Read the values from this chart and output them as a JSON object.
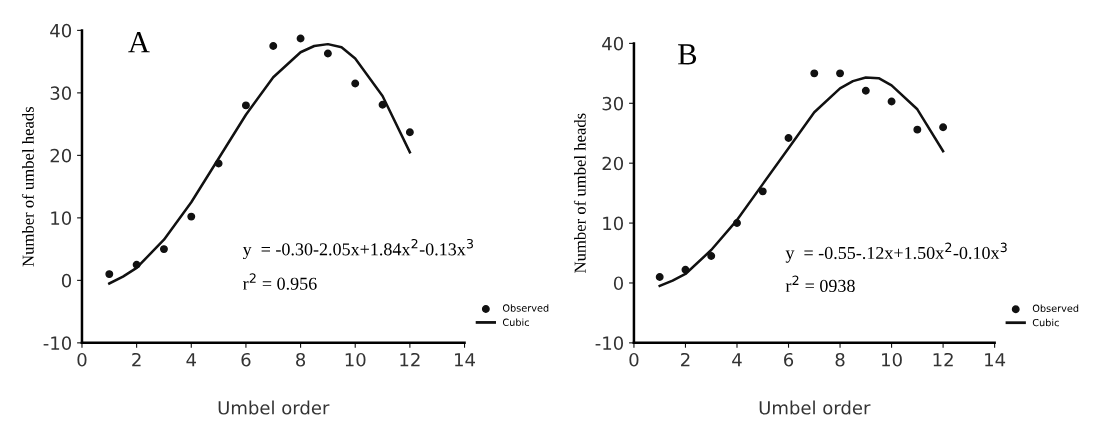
{
  "chart_data": [
    {
      "type": "scatter",
      "xlabel": "Umbel order",
      "ylabel": "Number of umbel heads",
      "xlim": [
        0,
        14
      ],
      "xticks": [
        0,
        2,
        4,
        6,
        8,
        10,
        12,
        14
      ],
      "ylim": [
        -10,
        40
      ],
      "yticks": [
        -10,
        0,
        10,
        20,
        30,
        40
      ],
      "grid": false,
      "legend": "bottom right",
      "annotations": [
        "A",
        "y  = -0.30-2.05x+1.84x$^{2}$-0.13x$^{3}$",
        "r$^{2}$ = 0.956"
      ],
      "series": [
        {
          "name": "Observed",
          "marker": "circle",
          "color": "#111111",
          "x": [
            1,
            2,
            3,
            4,
            5,
            6,
            7,
            8,
            9,
            10,
            11,
            12
          ],
          "values": [
            1,
            2.5,
            5,
            10.2,
            18.7,
            28,
            37.5,
            38.7,
            36.3,
            31.5,
            28.1,
            23.7
          ]
        },
        {
          "name": "Cubic",
          "type": "line",
          "line_style": "solid",
          "color": "#111111",
          "x": [
            1,
            1.5,
            2,
            3,
            4,
            5,
            6,
            7,
            8,
            8.5,
            9,
            9.5,
            10,
            11,
            12
          ],
          "values": [
            -0.5,
            0.6,
            2,
            6.5,
            12.5,
            19.5,
            26.5,
            32.5,
            36.5,
            37.5,
            37.8,
            37.3,
            35.5,
            29.5,
            20.5
          ]
        }
      ]
    },
    {
      "type": "scatter",
      "xlabel": "Umbel order",
      "ylabel": "Number of umbel heads",
      "xlim": [
        0,
        14
      ],
      "xticks": [
        0,
        2,
        4,
        6,
        8,
        10,
        12,
        14
      ],
      "ylim": [
        -10,
        40
      ],
      "yticks": [
        -10,
        0,
        10,
        20,
        30,
        40
      ],
      "grid": false,
      "legend": "bottom right",
      "annotations": [
        "B",
        "y  = -0.55-.12x+1.50x$^{2}$-0.10x$^{3}$",
        "r$^{2}$ = 0938"
      ],
      "series": [
        {
          "name": "Observed",
          "marker": "circle",
          "color": "#111111",
          "x": [
            1,
            2,
            3,
            4,
            5,
            6,
            7,
            8,
            9,
            10,
            11,
            12
          ],
          "values": [
            1,
            2.2,
            4.5,
            10,
            15.3,
            24.2,
            35,
            35,
            32.1,
            30.3,
            25.6,
            26
          ]
        },
        {
          "name": "Cubic",
          "type": "line",
          "line_style": "solid",
          "color": "#111111",
          "x": [
            1,
            1.5,
            2,
            3,
            4,
            5,
            6,
            7,
            8,
            8.5,
            9,
            9.5,
            10,
            11,
            12
          ],
          "values": [
            -0.5,
            0.4,
            1.5,
            5.5,
            10.5,
            16.5,
            22.5,
            28.5,
            32.5,
            33.7,
            34.3,
            34.2,
            33,
            29,
            22
          ]
        }
      ]
    }
  ]
}
